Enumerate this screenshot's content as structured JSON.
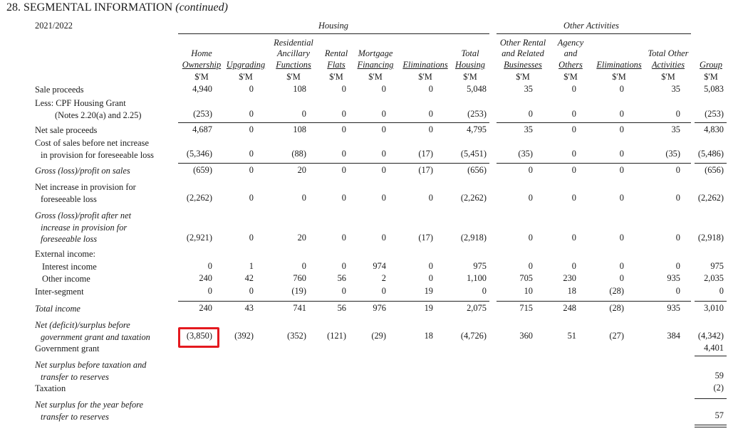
{
  "heading": {
    "number": "28.",
    "title": "SEGMENTAL INFORMATION",
    "continued": "(continued)"
  },
  "year": "2021/2022",
  "groups": {
    "housing": "Housing",
    "other": "Other Activities"
  },
  "columns": [
    {
      "lines": [
        "Home",
        "Ownership"
      ],
      "unit": "$'M"
    },
    {
      "lines": [
        "Upgrading"
      ],
      "unit": "$'M"
    },
    {
      "lines": [
        "Residential",
        "Ancillary",
        "Functions"
      ],
      "unit": "$'M"
    },
    {
      "lines": [
        "Rental",
        "Flats"
      ],
      "unit": "$'M"
    },
    {
      "lines": [
        "Mortgage",
        "Financing"
      ],
      "unit": "$'M"
    },
    {
      "lines": [
        "Eliminations"
      ],
      "unit": "$'M"
    },
    {
      "lines": [
        "Total",
        "Housing"
      ],
      "unit": "$'M"
    },
    {
      "lines": [
        "Other Rental",
        "and Related",
        "Businesses"
      ],
      "unit": "$'M"
    },
    {
      "lines": [
        "Agency",
        "and",
        "Others"
      ],
      "unit": "$'M"
    },
    {
      "lines": [
        "Eliminations"
      ],
      "unit": "$'M"
    },
    {
      "lines": [
        "Total Other",
        "Activities"
      ],
      "unit": "$'M"
    },
    {
      "lines": [
        "Group"
      ],
      "unit": "$'M"
    }
  ],
  "rows": [
    {
      "label": [
        "Sale proceeds"
      ],
      "values": [
        "4,940",
        "0",
        "108",
        "0",
        "0",
        "0",
        "5,048",
        "35",
        "0",
        "0",
        "35",
        "5,083"
      ]
    },
    {
      "label": [
        "Less: CPF Housing Grant",
        "(Notes 2.20(a) and 2.25)"
      ],
      "values": [
        "(253)",
        "0",
        "0",
        "0",
        "0",
        "0",
        "(253)",
        "0",
        "0",
        "0",
        "0",
        "(253)"
      ]
    },
    {
      "label": [
        "Net sale proceeds"
      ],
      "values": [
        "4,687",
        "0",
        "108",
        "0",
        "0",
        "0",
        "4,795",
        "35",
        "0",
        "0",
        "35",
        "4,830"
      ]
    },
    {
      "label": [
        "Cost of sales before net increase",
        "in provision for foreseeable loss"
      ],
      "values": [
        "(5,346)",
        "0",
        "(88)",
        "0",
        "0",
        "(17)",
        "(5,451)",
        "(35)",
        "0",
        "0",
        "(35)",
        "(5,486)"
      ]
    },
    {
      "label": [
        "Gross (loss)/profit on sales"
      ],
      "values": [
        "(659)",
        "0",
        "20",
        "0",
        "0",
        "(17)",
        "(656)",
        "0",
        "0",
        "0",
        "0",
        "(656)"
      ]
    },
    {
      "label": [
        "Net increase in provision for",
        "foreseeable loss"
      ],
      "values": [
        "(2,262)",
        "0",
        "0",
        "0",
        "0",
        "0",
        "(2,262)",
        "0",
        "0",
        "0",
        "0",
        "(2,262)"
      ]
    },
    {
      "label": [
        "Gross (loss)/profit after net",
        "increase in provision for",
        "foreseeable loss"
      ],
      "values": [
        "(2,921)",
        "0",
        "20",
        "0",
        "0",
        "(17)",
        "(2,918)",
        "0",
        "0",
        "0",
        "0",
        "(2,918)"
      ]
    },
    {
      "label": [
        "External income:"
      ],
      "values": []
    },
    {
      "label": [
        "Interest income"
      ],
      "values": [
        "0",
        "1",
        "0",
        "0",
        "974",
        "0",
        "975",
        "0",
        "0",
        "0",
        "0",
        "975"
      ]
    },
    {
      "label": [
        "Other income"
      ],
      "values": [
        "240",
        "42",
        "760",
        "56",
        "2",
        "0",
        "1,100",
        "705",
        "230",
        "0",
        "935",
        "2,035"
      ]
    },
    {
      "label": [
        "Inter-segment"
      ],
      "values": [
        "0",
        "0",
        "(19)",
        "0",
        "0",
        "19",
        "0",
        "10",
        "18",
        "(28)",
        "0",
        "0"
      ]
    },
    {
      "label": [
        "Total income"
      ],
      "values": [
        "240",
        "43",
        "741",
        "56",
        "976",
        "19",
        "2,075",
        "715",
        "248",
        "(28)",
        "935",
        "3,010"
      ]
    },
    {
      "label": [
        "Net (deficit)/surplus before",
        "government grant and taxation"
      ],
      "values": [
        "(3,850)",
        "(392)",
        "(352)",
        "(121)",
        "(29)",
        "18",
        "(4,726)",
        "360",
        "51",
        "(27)",
        "384",
        "(4,342)"
      ]
    },
    {
      "label": [
        "Government grant"
      ],
      "values": [
        "",
        "",
        "",
        "",
        "",
        "",
        "",
        "",
        "",
        "",
        "",
        "4,401"
      ]
    },
    {
      "label": [
        "Net surplus before taxation and",
        "transfer to reserves"
      ],
      "values": [
        "",
        "",
        "",
        "",
        "",
        "",
        "",
        "",
        "",
        "",
        "",
        "59"
      ]
    },
    {
      "label": [
        "Taxation"
      ],
      "values": [
        "",
        "",
        "",
        "",
        "",
        "",
        "",
        "",
        "",
        "",
        "",
        "(2)"
      ]
    },
    {
      "label": [
        "Net surplus for the year before",
        "transfer to reserves"
      ],
      "values": [
        "",
        "",
        "",
        "",
        "",
        "",
        "",
        "",
        "",
        "",
        "",
        "57"
      ]
    }
  ],
  "highlight": {
    "row": 12,
    "col": 0,
    "color": "#e4191f"
  }
}
